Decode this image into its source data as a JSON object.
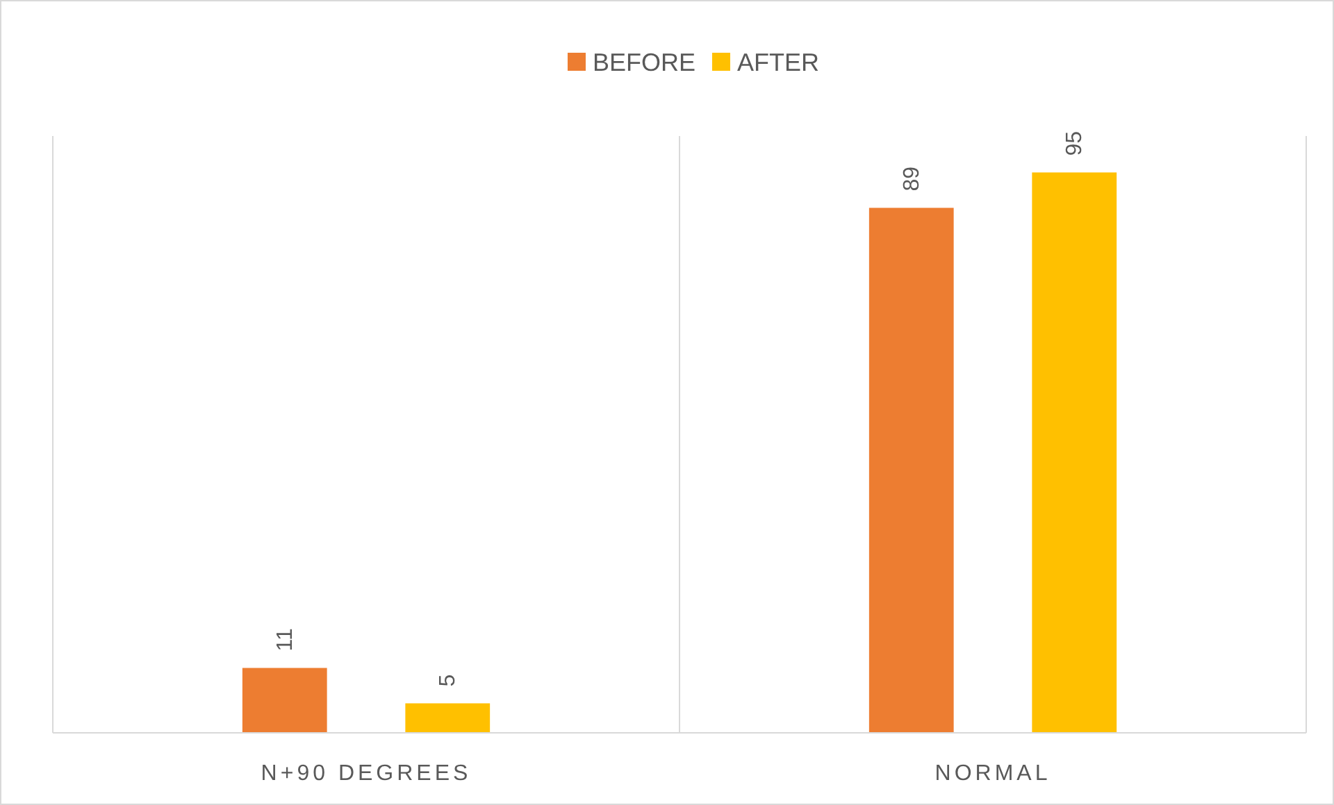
{
  "chart_data": {
    "type": "bar",
    "categories": [
      "N+90 DEGREES",
      "NORMAL"
    ],
    "series": [
      {
        "name": "BEFORE",
        "color": "#ed7d31",
        "values": [
          11,
          89
        ]
      },
      {
        "name": "AFTER",
        "color": "#ffc000",
        "values": [
          5,
          95
        ]
      }
    ],
    "data_labels": true,
    "legend": "top",
    "grid": "x"
  }
}
